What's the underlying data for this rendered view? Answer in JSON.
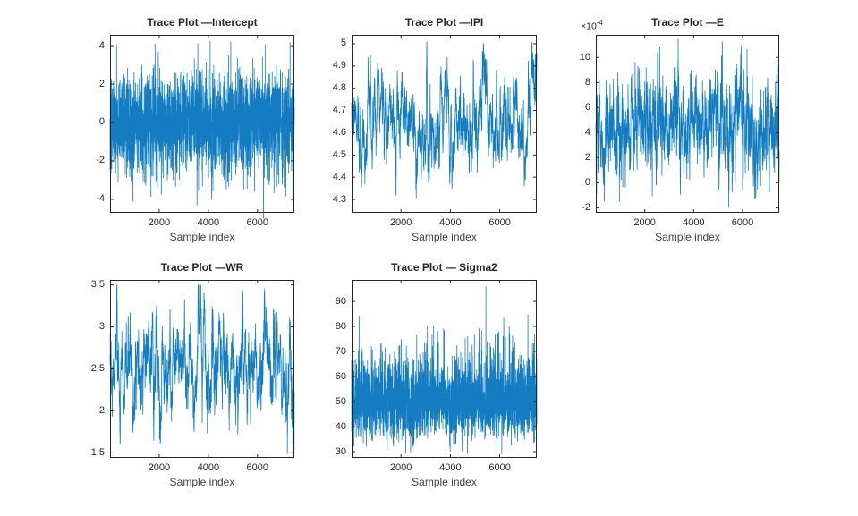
{
  "figure": {
    "background": "#ffffff",
    "trace_color": "#0072BD",
    "axis_color": "#262626",
    "tick_text_color": "#262626",
    "label_text_color": "#3f3f3f"
  },
  "chart_data": [
    {
      "id": "intercept",
      "type": "line",
      "title": "Trace Plot —Intercept",
      "xlabel": "Sample index",
      "n_samples": 7500,
      "xlim": [
        0,
        7500
      ],
      "xticks": [
        2000,
        4000,
        6000
      ],
      "xtick_labels": [
        "2000",
        "4000",
        "6000"
      ],
      "ylim": [
        -4.7,
        4.56
      ],
      "yticks": [
        -4,
        -2,
        0,
        2,
        4
      ],
      "ytick_labels": [
        "-4",
        "-2",
        "0",
        "2",
        "4"
      ],
      "grid": false,
      "series_summary": {
        "process": "normal",
        "description": "white-noise-like MCMC trace centered at 0",
        "mean": 0,
        "std": 1.25,
        "rho": 0.03,
        "min": -5.0,
        "max": 4.52,
        "tail_prob": 0.05,
        "tail_scale": 1.6
      },
      "seed": 101
    },
    {
      "id": "ipi",
      "type": "line",
      "title": "Trace Plot —IPI",
      "xlabel": "Sample index",
      "n_samples": 7500,
      "xlim": [
        0,
        7500
      ],
      "xticks": [
        2000,
        4000,
        6000
      ],
      "xtick_labels": [
        "2000",
        "4000",
        "6000"
      ],
      "ylim": [
        4.24,
        5.04
      ],
      "yticks": [
        4.3,
        4.4,
        4.5,
        4.6,
        4.7,
        4.8,
        4.9,
        5
      ],
      "ytick_labels": [
        "4.3",
        "4.4",
        "4.5",
        "4.6",
        "4.7",
        "4.8",
        "4.9",
        "5"
      ],
      "grid": false,
      "series_summary": {
        "process": "normal",
        "description": "highly autocorrelated trace meandering about 4.65",
        "mean": 4.65,
        "std": 0.115,
        "rho": 0.93,
        "min": 4.26,
        "max": 5.02,
        "tail_prob": 0,
        "tail_scale": 1
      },
      "seed": 202
    },
    {
      "id": "e",
      "type": "line",
      "title": "Trace Plot —E",
      "xlabel": "Sample index",
      "n_samples": 7500,
      "xlim": [
        0,
        7500
      ],
      "xticks": [
        2000,
        4000,
        6000
      ],
      "xtick_labels": [
        "2000",
        "4000",
        "6000"
      ],
      "ylim": [
        -2.4,
        11.8
      ],
      "yticks": [
        -2,
        0,
        2,
        4,
        6,
        8,
        10
      ],
      "ytick_labels": [
        "-2",
        "0",
        "2",
        "4",
        "6",
        "8",
        "10"
      ],
      "y_multiplier": {
        "base": "×10",
        "exp": "-4"
      },
      "units_note": "y values displayed in units of 1e-4",
      "grid": false,
      "series_summary": {
        "process": "normal",
        "description": "autocorrelated trace around 4.6e-4",
        "mean": 4.6,
        "std": 2.05,
        "rho": 0.82,
        "min": -2.1,
        "max": 11.5,
        "tail_prob": 0.03,
        "tail_scale": 1.5
      },
      "seed": 303
    },
    {
      "id": "wr",
      "type": "line",
      "title": "Trace Plot —WR",
      "xlabel": "Sample index",
      "n_samples": 7500,
      "xlim": [
        0,
        7500
      ],
      "xticks": [
        2000,
        4000,
        6000
      ],
      "xtick_labels": [
        "2000",
        "4000",
        "6000"
      ],
      "ylim": [
        1.44,
        3.56
      ],
      "yticks": [
        1.5,
        2,
        2.5,
        3,
        3.5
      ],
      "ytick_labels": [
        "1.5",
        "2",
        "2.5",
        "3",
        "3.5"
      ],
      "grid": false,
      "series_summary": {
        "process": "normal",
        "description": "highly autocorrelated trace meandering about 2.5",
        "mean": 2.52,
        "std": 0.37,
        "rho": 0.93,
        "min": 1.47,
        "max": 3.5,
        "tail_prob": 0,
        "tail_scale": 1
      },
      "seed": 404
    },
    {
      "id": "sigma2",
      "type": "line",
      "title": "Trace Plot — Sigma2",
      "xlabel": "Sample index",
      "n_samples": 7500,
      "xlim": [
        0,
        7500
      ],
      "xticks": [
        2000,
        4000,
        6000
      ],
      "xtick_labels": [
        "2000",
        "4000",
        "6000"
      ],
      "ylim": [
        27.5,
        98.6
      ],
      "yticks": [
        30,
        40,
        50,
        60,
        70,
        80,
        90
      ],
      "ytick_labels": [
        "30",
        "40",
        "50",
        "60",
        "70",
        "80",
        "90"
      ],
      "grid": false,
      "series_summary": {
        "process": "lognormal",
        "description": "right-skewed white-noise-like trace around 50",
        "mean": 50,
        "sigma_log": 0.165,
        "rho": 0.1,
        "min": 29,
        "max": 96,
        "tail_prob": 0.05,
        "tail_scale": 1.5
      },
      "seed": 505
    }
  ]
}
